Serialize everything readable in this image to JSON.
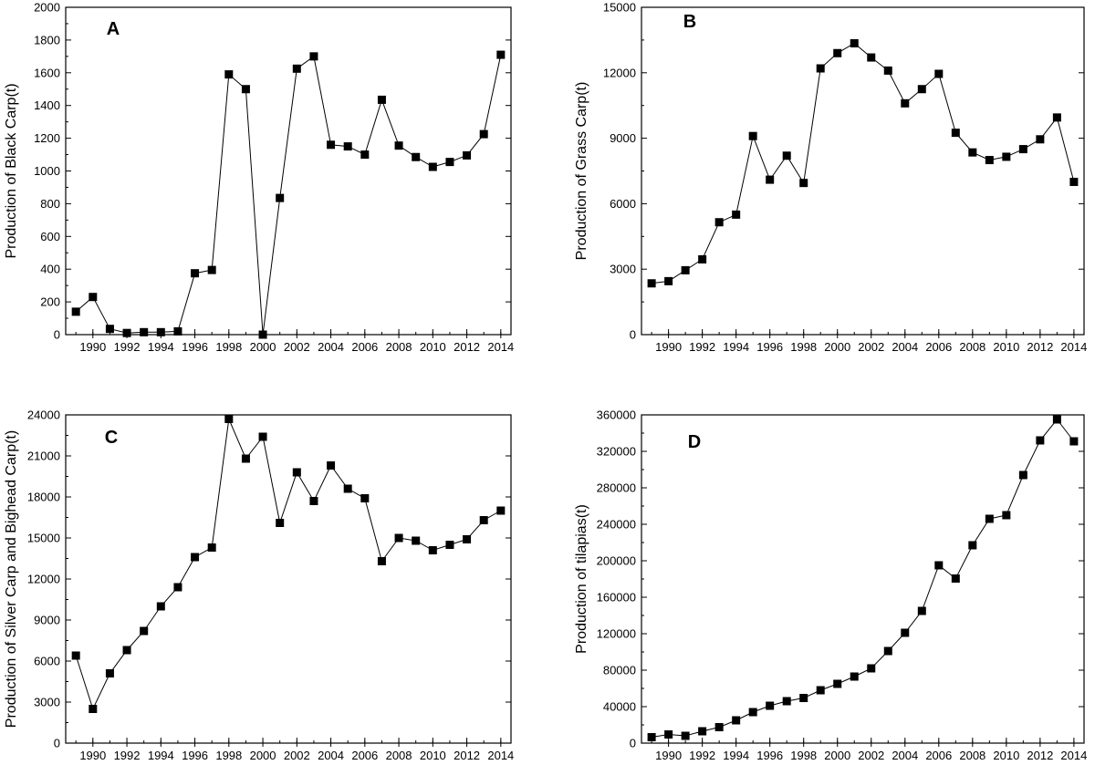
{
  "chart_data": [
    {
      "type": "line",
      "panel_label": "A",
      "title": "",
      "xlabel": "",
      "ylabel": "Production of Black Carp(t)",
      "x": [
        1989,
        1990,
        1991,
        1992,
        1993,
        1994,
        1995,
        1996,
        1997,
        1998,
        1999,
        2000,
        2001,
        2002,
        2003,
        2004,
        2005,
        2006,
        2007,
        2008,
        2009,
        2010,
        2011,
        2012,
        2013,
        2014
      ],
      "values": [
        140,
        230,
        35,
        10,
        15,
        15,
        20,
        375,
        395,
        1590,
        1500,
        0,
        835,
        1625,
        1700,
        1160,
        1150,
        1100,
        1435,
        1155,
        1085,
        1025,
        1055,
        1095,
        1225,
        1710
      ],
      "xlim": [
        1988.4,
        2014.6
      ],
      "ylim": [
        0,
        2000
      ],
      "yticks": [
        0,
        200,
        400,
        600,
        800,
        1000,
        1200,
        1400,
        1600,
        1800,
        2000
      ],
      "xticks": [
        "1990",
        "1992",
        "1994",
        "1996",
        "1998",
        "2000",
        "2002",
        "2004",
        "2006",
        "2008",
        "2010",
        "2012",
        "2014"
      ],
      "marker": "square",
      "grid": false
    },
    {
      "type": "line",
      "panel_label": "B",
      "title": "",
      "xlabel": "",
      "ylabel": "Production of Grass Carp(t)",
      "x": [
        1989,
        1990,
        1991,
        1992,
        1993,
        1994,
        1995,
        1996,
        1997,
        1998,
        1999,
        2000,
        2001,
        2002,
        2003,
        2004,
        2005,
        2006,
        2007,
        2008,
        2009,
        2010,
        2011,
        2012,
        2013,
        2014
      ],
      "values": [
        2350,
        2450,
        2950,
        3450,
        5150,
        5500,
        9100,
        7100,
        8200,
        6950,
        12200,
        12900,
        13350,
        12700,
        12100,
        10600,
        11250,
        11950,
        9250,
        8350,
        8000,
        8150,
        8500,
        8950,
        9950,
        7000
      ],
      "xlim": [
        1988.4,
        2014.6
      ],
      "ylim": [
        0,
        15000
      ],
      "yticks": [
        0,
        3000,
        6000,
        9000,
        12000,
        15000
      ],
      "xticks": [
        "1990",
        "1992",
        "1994",
        "1996",
        "1998",
        "2000",
        "2002",
        "2004",
        "2006",
        "2008",
        "2010",
        "2012",
        "2014"
      ],
      "marker": "square",
      "grid": false
    },
    {
      "type": "line",
      "panel_label": "C",
      "title": "",
      "xlabel": "",
      "ylabel": "Production of Silver Carp and Bighead Carp(t)",
      "x": [
        1989,
        1990,
        1991,
        1992,
        1993,
        1994,
        1995,
        1996,
        1997,
        1998,
        1999,
        2000,
        2001,
        2002,
        2003,
        2004,
        2005,
        2006,
        2007,
        2008,
        2009,
        2010,
        2011,
        2012,
        2013,
        2014
      ],
      "values": [
        6400,
        2500,
        5100,
        6800,
        8200,
        10000,
        11400,
        13600,
        14300,
        23700,
        20800,
        22400,
        16100,
        19800,
        17700,
        20300,
        18600,
        17900,
        13300,
        15000,
        14800,
        14100,
        14500,
        14900,
        16300,
        17000
      ],
      "xlim": [
        1988.4,
        2014.6
      ],
      "ylim": [
        0,
        24000
      ],
      "yticks": [
        0,
        3000,
        6000,
        9000,
        12000,
        15000,
        18000,
        21000,
        24000
      ],
      "xticks": [
        "1990",
        "1992",
        "1994",
        "1996",
        "1998",
        "2000",
        "2002",
        "2004",
        "2006",
        "2008",
        "2010",
        "2012",
        "2014"
      ],
      "marker": "square",
      "grid": false
    },
    {
      "type": "line",
      "panel_label": "D",
      "title": "",
      "xlabel": "",
      "ylabel": "Production of tilapias(t)",
      "x": [
        1989,
        1990,
        1991,
        1992,
        1993,
        1994,
        1995,
        1996,
        1997,
        1998,
        1999,
        2000,
        2001,
        2002,
        2003,
        2004,
        2005,
        2006,
        2007,
        2008,
        2009,
        2010,
        2011,
        2012,
        2013,
        2014
      ],
      "values": [
        6500,
        9500,
        8000,
        13000,
        17500,
        25000,
        34000,
        41000,
        46000,
        49500,
        58000,
        65000,
        73000,
        82000,
        101000,
        121000,
        145000,
        195000,
        180500,
        217000,
        246000,
        250000,
        294000,
        332000,
        355000,
        331000
      ],
      "xlim": [
        1988.4,
        2014.6
      ],
      "ylim": [
        0,
        360000
      ],
      "yticks": [
        0,
        40000,
        80000,
        120000,
        160000,
        200000,
        240000,
        280000,
        320000,
        360000
      ],
      "xticks": [
        "1990",
        "1992",
        "1994",
        "1996",
        "1998",
        "2000",
        "2002",
        "2004",
        "2006",
        "2008",
        "2010",
        "2012",
        "2014"
      ],
      "marker": "square",
      "grid": false
    }
  ]
}
